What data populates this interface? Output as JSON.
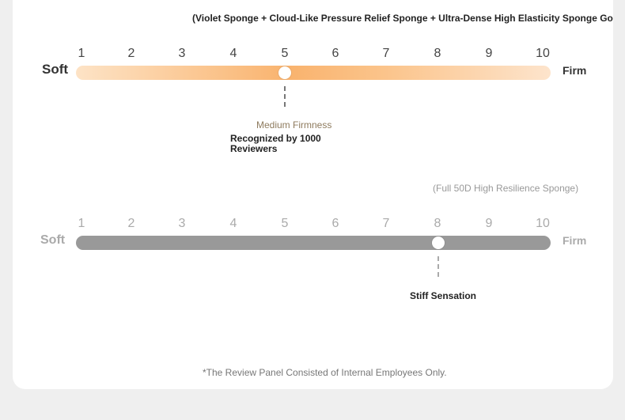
{
  "top_scale": {
    "caption": "(Violet Sponge + Cloud-Like Pressure Relief Sponge + Ultra-Dense High Elasticity Sponge Golden Ratio",
    "left_label": "Soft",
    "right_label": "Firm",
    "numbers": [
      "1",
      "2",
      "3",
      "4",
      "5",
      "6",
      "7",
      "8",
      "9",
      "10"
    ],
    "value": 5,
    "marker_title": "Medium Firmness",
    "marker_note": "Recognized by 1000 Reviewers",
    "track_colors": [
      "#fde3c6",
      "#f9b36e"
    ]
  },
  "bottom_scale": {
    "caption": "(Full 50D High Resilience Sponge)",
    "left_label": "Soft",
    "right_label": "Firm",
    "numbers": [
      "1",
      "2",
      "3",
      "4",
      "5",
      "6",
      "7",
      "8",
      "9",
      "10"
    ],
    "value": 8,
    "marker_note": "Stiff Sensation",
    "track_color": "#999999"
  },
  "footer": "*The Review Panel Consisted of Internal Employees Only."
}
